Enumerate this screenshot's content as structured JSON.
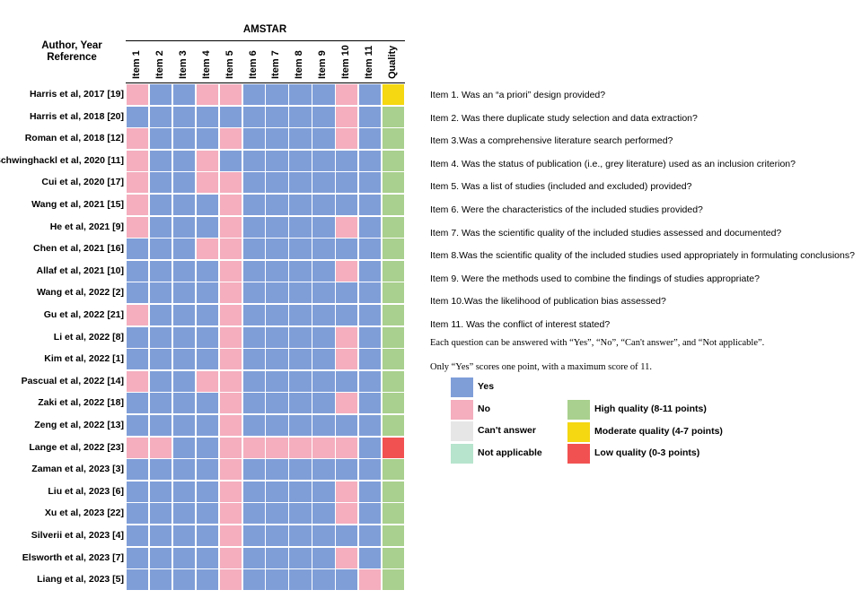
{
  "figure": {
    "group_title": "AMSTAR",
    "row_header": "Author, Year\nReference",
    "columns": [
      "Item 1",
      "Item 2",
      "Item 3",
      "Item 4",
      "Item 5",
      "Item 6",
      "Item 7",
      "Item 8",
      "Item 9",
      "Item 10",
      "Item 11",
      "Quality"
    ]
  },
  "colors": {
    "Y": "#7f9ed8",
    "N": "#f4aebe",
    "C": "#e6e6e6",
    "NA": "#b7e4cd",
    "H": "#a9d08e",
    "M": "#f5d712",
    "L": "#f25151"
  },
  "chart_data": {
    "type": "table",
    "title": "AMSTAR",
    "row_header": "Author, Year Reference",
    "columns": [
      "Item 1",
      "Item 2",
      "Item 3",
      "Item 4",
      "Item 5",
      "Item 6",
      "Item 7",
      "Item 8",
      "Item 9",
      "Item 10",
      "Item 11",
      "Quality"
    ],
    "rows": [
      {
        "label": "Harris et al, 2017 [19]",
        "values": [
          "No",
          "Yes",
          "Yes",
          "No",
          "No",
          "Yes",
          "Yes",
          "Yes",
          "Yes",
          "No",
          "Yes",
          "Moderate"
        ]
      },
      {
        "label": "Harris et al, 2018 [20]",
        "values": [
          "Yes",
          "Yes",
          "Yes",
          "Yes",
          "Yes",
          "Yes",
          "Yes",
          "Yes",
          "Yes",
          "No",
          "Yes",
          "High"
        ]
      },
      {
        "label": "Roman et al, 2018 [12]",
        "values": [
          "No",
          "Yes",
          "Yes",
          "Yes",
          "No",
          "Yes",
          "Yes",
          "Yes",
          "Yes",
          "No",
          "Yes",
          "High"
        ]
      },
      {
        "label": "Schwinghackl et al, 2020 [11]",
        "values": [
          "No",
          "Yes",
          "Yes",
          "No",
          "Yes",
          "Yes",
          "Yes",
          "Yes",
          "Yes",
          "Yes",
          "Yes",
          "High"
        ]
      },
      {
        "label": "Cui et al, 2020 [17]",
        "values": [
          "No",
          "Yes",
          "Yes",
          "No",
          "No",
          "Yes",
          "Yes",
          "Yes",
          "Yes",
          "Yes",
          "Yes",
          "High"
        ]
      },
      {
        "label": "Wang et al, 2021 [15]",
        "values": [
          "No",
          "Yes",
          "Yes",
          "Yes",
          "No",
          "Yes",
          "Yes",
          "Yes",
          "Yes",
          "Yes",
          "Yes",
          "High"
        ]
      },
      {
        "label": "He et al, 2021 [9]",
        "values": [
          "No",
          "Yes",
          "Yes",
          "Yes",
          "No",
          "Yes",
          "Yes",
          "Yes",
          "Yes",
          "No",
          "Yes",
          "High"
        ]
      },
      {
        "label": "Chen et al, 2021 [16]",
        "values": [
          "Yes",
          "Yes",
          "Yes",
          "No",
          "No",
          "Yes",
          "Yes",
          "Yes",
          "Yes",
          "Yes",
          "Yes",
          "High"
        ]
      },
      {
        "label": "Allaf et al, 2021 [10]",
        "values": [
          "Yes",
          "Yes",
          "Yes",
          "Yes",
          "No",
          "Yes",
          "Yes",
          "Yes",
          "Yes",
          "No",
          "Yes",
          "High"
        ]
      },
      {
        "label": "Wang et al, 2022 [2]",
        "values": [
          "Yes",
          "Yes",
          "Yes",
          "Yes",
          "No",
          "Yes",
          "Yes",
          "Yes",
          "Yes",
          "Yes",
          "Yes",
          "High"
        ]
      },
      {
        "label": "Gu et al, 2022 [21]",
        "values": [
          "No",
          "Yes",
          "Yes",
          "Yes",
          "No",
          "Yes",
          "Yes",
          "Yes",
          "Yes",
          "Yes",
          "Yes",
          "High"
        ]
      },
      {
        "label": "Li et al, 2022 [8]",
        "values": [
          "Yes",
          "Yes",
          "Yes",
          "Yes",
          "No",
          "Yes",
          "Yes",
          "Yes",
          "Yes",
          "No",
          "Yes",
          "High"
        ]
      },
      {
        "label": "Kim et al, 2022 [1]",
        "values": [
          "Yes",
          "Yes",
          "Yes",
          "Yes",
          "No",
          "Yes",
          "Yes",
          "Yes",
          "Yes",
          "No",
          "Yes",
          "High"
        ]
      },
      {
        "label": "Pascual et al, 2022 [14]",
        "values": [
          "No",
          "Yes",
          "Yes",
          "No",
          "No",
          "Yes",
          "Yes",
          "Yes",
          "Yes",
          "Yes",
          "Yes",
          "High"
        ]
      },
      {
        "label": "Zaki et al, 2022 [18]",
        "values": [
          "Yes",
          "Yes",
          "Yes",
          "Yes",
          "No",
          "Yes",
          "Yes",
          "Yes",
          "Yes",
          "No",
          "Yes",
          "High"
        ]
      },
      {
        "label": "Zeng et al, 2022 [13]",
        "values": [
          "Yes",
          "Yes",
          "Yes",
          "Yes",
          "No",
          "Yes",
          "Yes",
          "Yes",
          "Yes",
          "Yes",
          "Yes",
          "High"
        ]
      },
      {
        "label": "Lange et al, 2022 [23]",
        "values": [
          "No",
          "No",
          "Yes",
          "Yes",
          "No",
          "No",
          "No",
          "No",
          "No",
          "No",
          "Yes",
          "Low"
        ]
      },
      {
        "label": "Zaman et al, 2023 [3]",
        "values": [
          "Yes",
          "Yes",
          "Yes",
          "Yes",
          "No",
          "Yes",
          "Yes",
          "Yes",
          "Yes",
          "Yes",
          "Yes",
          "High"
        ]
      },
      {
        "label": "Liu et al, 2023 [6]",
        "values": [
          "Yes",
          "Yes",
          "Yes",
          "Yes",
          "No",
          "Yes",
          "Yes",
          "Yes",
          "Yes",
          "No",
          "Yes",
          "High"
        ]
      },
      {
        "label": "Xu et al, 2023 [22]",
        "values": [
          "Yes",
          "Yes",
          "Yes",
          "Yes",
          "No",
          "Yes",
          "Yes",
          "Yes",
          "Yes",
          "No",
          "Yes",
          "High"
        ]
      },
      {
        "label": "Silverii et al, 2023 [4]",
        "values": [
          "Yes",
          "Yes",
          "Yes",
          "Yes",
          "No",
          "Yes",
          "Yes",
          "Yes",
          "Yes",
          "Yes",
          "Yes",
          "High"
        ]
      },
      {
        "label": "Elsworth et al, 2023 [7]",
        "values": [
          "Yes",
          "Yes",
          "Yes",
          "Yes",
          "No",
          "Yes",
          "Yes",
          "Yes",
          "Yes",
          "No",
          "Yes",
          "High"
        ]
      },
      {
        "label": "Liang et al, 2023 [5]",
        "values": [
          "Yes",
          "Yes",
          "Yes",
          "Yes",
          "No",
          "Yes",
          "Yes",
          "Yes",
          "Yes",
          "Yes",
          "No",
          "High"
        ]
      }
    ]
  },
  "item_definitions": [
    "Item 1. Was an “a priori”  design provided?",
    "Item 2. Was there duplicate study selection and data extraction?",
    "Item 3.Was a comprehensive literature search performed?",
    "Item 4. Was the status of publication (i.e., grey literature) used as an inclusion criterion?",
    "Item 5. Was a list of studies (included and excluded) provided?",
    "Item 6. Were the characteristics of the included studies provided?",
    "Item 7. Was the scientific quality of the included studies assessed and documented?",
    "Item 8.Was the scientific quality of the included studies used appropriately in formulating conclusions?",
    "Item 9. Were the methods used to combine the findings of studies appropriate?",
    "Item 10.Was the likelihood of publication bias assessed?",
    "Item 11.  Was the conflict of interest stated?"
  ],
  "notes": [
    "Each question can be answered with “Yes”, “No”, “Can't answer”, and “Not applicable”.",
    "Only “Yes” scores one point, with a maximum score of 11."
  ],
  "legend_answers": [
    {
      "label": "Yes",
      "color": "#7f9ed8"
    },
    {
      "label": "No",
      "color": "#f4aebe"
    },
    {
      "label": "Can't answer",
      "color": "#e6e6e6"
    },
    {
      "label": "Not applicable",
      "color": "#b7e4cd"
    }
  ],
  "legend_quality": [
    {
      "label": "High quality (8-11 points)",
      "color": "#a9d08e"
    },
    {
      "label": "Moderate quality (4-7 points)",
      "color": "#f5d712"
    },
    {
      "label": "Low quality (0-3 points)",
      "color": "#f25151"
    }
  ]
}
